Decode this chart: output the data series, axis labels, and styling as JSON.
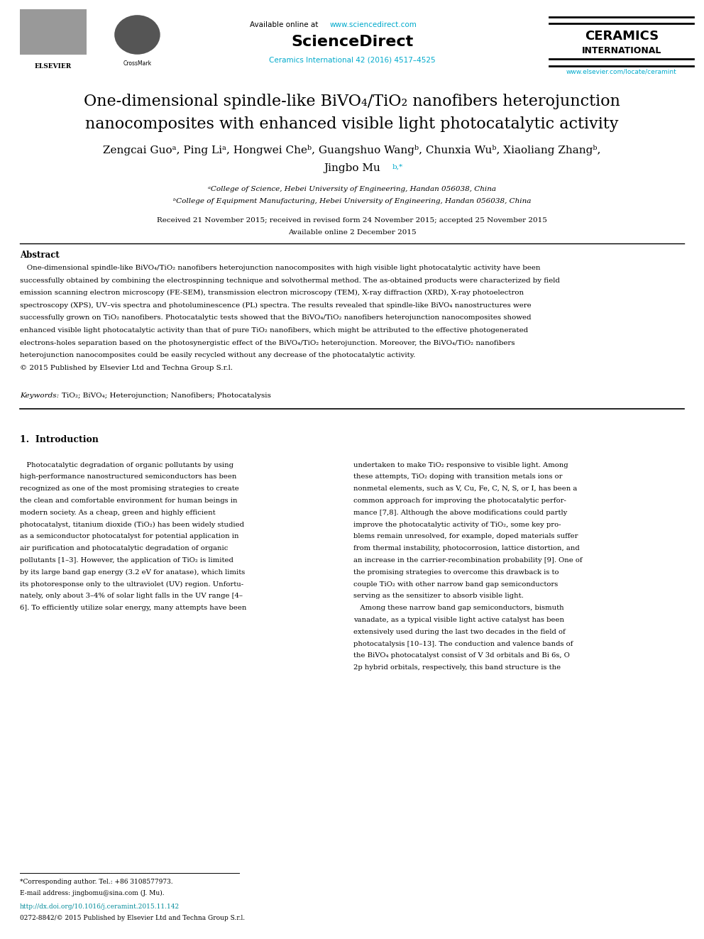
{
  "page_width": 9.92,
  "page_height": 13.23,
  "bg_color": "#ffffff",
  "cyan_color": "#00AACC",
  "dark_cyan": "#008B9A",
  "header": {
    "available_online": "Available online at ",
    "sciencedirect_url": "www.sciencedirect.com",
    "sciencedirect_bold": "ScienceDirect",
    "journal_line1": "Ceramics International 42 (2016) 4517–4525",
    "ceramics": "CERAMICS",
    "international": "INTERNATIONAL",
    "www_line": "www.elsevier.com/locate/ceramint",
    "elsevier_text": "ELSEVIER"
  },
  "title_line1": "One-dimensional spindle-like BiVO₄/TiO₂ nanofibers heterojunction",
  "title_line2": "nanocomposites with enhanced visible light photocatalytic activity",
  "authors": "Zengcai Guoᵃ, Ping Liᵃ, Hongwei Cheᵇ, Guangshuo Wangᵇ, Chunxia Wuᵇ, Xiaoliang Zhangᵇ,",
  "authors2_name": "Jingbo Mu",
  "authors2_sup": "b,*",
  "affil_a": "ᵃCollege of Science, Hebei University of Engineering, Handan 056038, China",
  "affil_b": "ᵇCollege of Equipment Manufacturing, Hebei University of Engineering, Handan 056038, China",
  "received": "Received 21 November 2015; received in revised form 24 November 2015; accepted 25 November 2015",
  "available": "Available online 2 December 2015",
  "abstract_title": "Abstract",
  "abstract_lines": [
    "   One-dimensional spindle-like BiVO₄/TiO₂ nanofibers heterojunction nanocomposites with high visible light photocatalytic activity have been",
    "successfully obtained by combining the electrospinning technique and solvothermal method. The as-obtained products were characterized by field",
    "emission scanning electron microscopy (FE-SEM), transmission electron microscopy (TEM), X-ray diffraction (XRD), X-ray photoelectron",
    "spectroscopy (XPS), UV–vis spectra and photoluminescence (PL) spectra. The results revealed that spindle-like BiVO₄ nanostructures were",
    "successfully grown on TiO₂ nanofibers. Photocatalytic tests showed that the BiVO₄/TiO₂ nanofibers heterojunction nanocomposites showed",
    "enhanced visible light photocatalytic activity than that of pure TiO₂ nanofibers, which might be attributed to the effective photogenerated",
    "electrons-holes separation based on the photosynergistic effect of the BiVO₄/TiO₂ heterojunction. Moreover, the BiVO₄/TiO₂ nanofibers",
    "heterojunction nanocomposites could be easily recycled without any decrease of the photocatalytic activity.",
    "© 2015 Published by Elsevier Ltd and Techna Group S.r.l."
  ],
  "keywords_italic": "Keywords: ",
  "keywords_text": "TiO₂; BiVO₄; Heterojunction; Nanofibers; Photocatalysis",
  "intro_title": "1.  Introduction",
  "intro_col1": [
    "   Photocatalytic degradation of organic pollutants by using",
    "high-performance nanostructured semiconductors has been",
    "recognized as one of the most promising strategies to create",
    "the clean and comfortable environment for human beings in",
    "modern society. As a cheap, green and highly efficient",
    "photocatalyst, titanium dioxide (TiO₂) has been widely studied",
    "as a semiconductor photocatalyst for potential application in",
    "air purification and photocatalytic degradation of organic",
    "pollutants [1–3]. However, the application of TiO₂ is limited",
    "by its large band gap energy (3.2 eV for anatase), which limits",
    "its photoresponse only to the ultraviolet (UV) region. Unfortu-",
    "nately, only about 3–4% of solar light falls in the UV range [4–",
    "6]. To efficiently utilize solar energy, many attempts have been"
  ],
  "intro_col2": [
    "undertaken to make TiO₂ responsive to visible light. Among",
    "these attempts, TiO₂ doping with transition metals ions or",
    "nonmetal elements, such as V, Cu, Fe, C, N, S, or I, has been a",
    "common approach for improving the photocatalytic perfor-",
    "mance [7,8]. Although the above modifications could partly",
    "improve the photocatalytic activity of TiO₂, some key pro-",
    "blems remain unresolved, for example, doped materials suffer",
    "from thermal instability, photocorrosion, lattice distortion, and",
    "an increase in the carrier-recombination probability [9]. One of",
    "the promising strategies to overcome this drawback is to",
    "couple TiO₂ with other narrow band gap semiconductors",
    "serving as the sensitizer to absorb visible light.",
    "   Among these narrow band gap semiconductors, bismuth",
    "vanadate, as a typical visible light active catalyst has been",
    "extensively used during the last two decades in the field of",
    "photocatalysis [10–13]. The conduction and valence bands of",
    "the BiVO₄ photocatalyst consist of V 3d orbitals and Bi 6s, O",
    "2p hybrid orbitals, respectively, this band structure is the"
  ],
  "footnote1": "*Corresponding author. Tel.: +86 3108577973.",
  "footnote2": "E-mail address: jingbomu@sina.com (J. Mu).",
  "doi_line": "http://dx.doi.org/10.1016/j.ceramint.2015.11.142",
  "copyright_line": "0272-8842/© 2015 Published by Elsevier Ltd and Techna Group S.r.l."
}
